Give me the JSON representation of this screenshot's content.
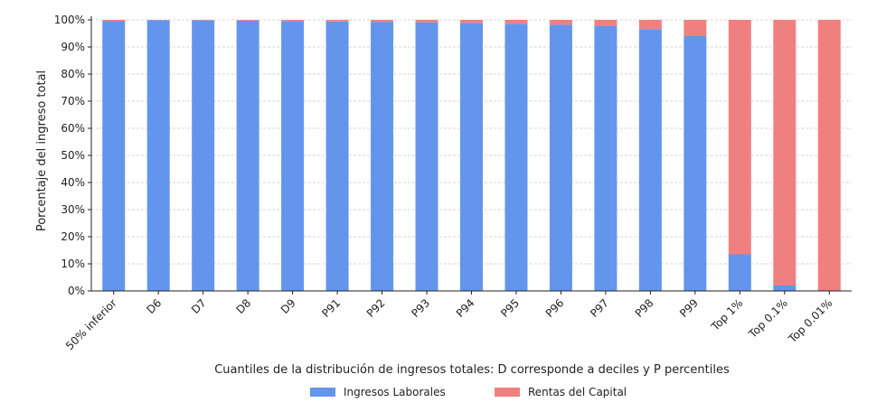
{
  "chart_data": {
    "type": "bar",
    "stacked": true,
    "categories": [
      "50% inferior",
      "D6",
      "D7",
      "D8",
      "D9",
      "P91",
      "P92",
      "P93",
      "P94",
      "P95",
      "P96",
      "P97",
      "P98",
      "P99",
      "Top 1%",
      "Top 0.1%",
      "Top 0.01%"
    ],
    "series": [
      {
        "name": "Ingresos Laborales",
        "color": "#6495ED",
        "values": [
          99.5,
          99.9,
          99.8,
          99.7,
          99.6,
          99.4,
          99.3,
          99.1,
          98.9,
          98.6,
          98.2,
          97.8,
          96.6,
          94.0,
          13.5,
          2.0,
          0.0
        ]
      },
      {
        "name": "Rentas del Capital",
        "color": "#F08080",
        "values": [
          0.5,
          0.1,
          0.2,
          0.3,
          0.4,
          0.6,
          0.7,
          0.9,
          1.1,
          1.4,
          1.8,
          2.2,
          3.4,
          6.0,
          86.5,
          98.0,
          100.0
        ]
      }
    ],
    "xlabel": "Cuantiles de la distribución de ingresos totales: D corresponde a deciles y P percentiles",
    "ylabel": "Porcentaje del ingreso total",
    "ylim": [
      0,
      100
    ],
    "yticks": [
      "0%",
      "10%",
      "20%",
      "30%",
      "40%",
      "50%",
      "60%",
      "70%",
      "80%",
      "90%",
      "100%"
    ],
    "grid": true,
    "legend_position": "bottom-center"
  }
}
